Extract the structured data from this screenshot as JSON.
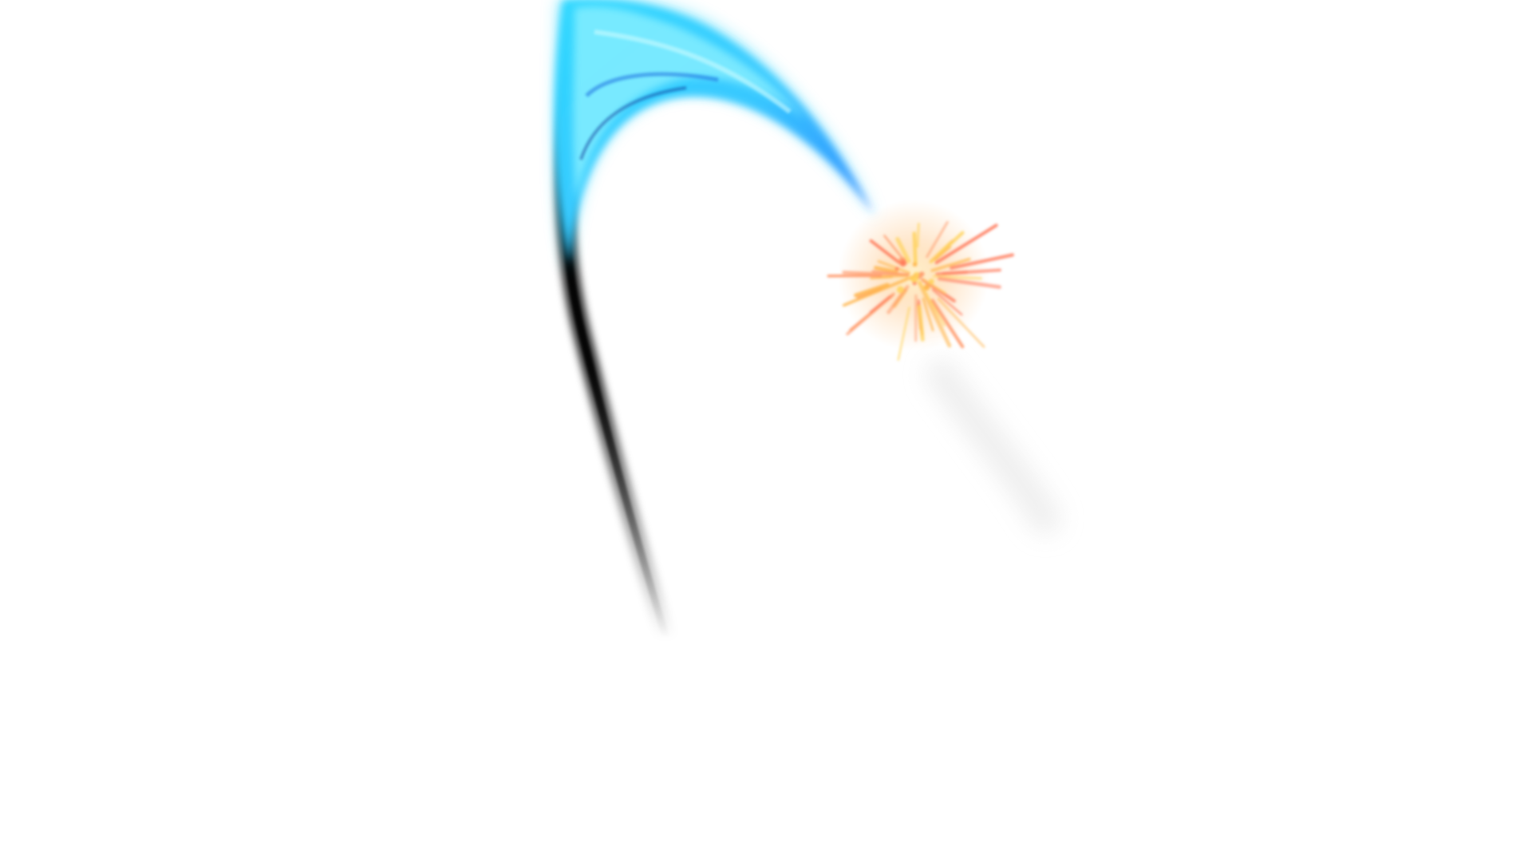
{
  "scene": {
    "background_color": "#ffffff",
    "effect": {
      "trail_colors": {
        "cyan": "#2fd8ff",
        "light_cyan": "#8ff2ff",
        "blue": "#2a7cff",
        "shadow": "#000000"
      },
      "spark_colors": [
        "#ffb347",
        "#ff9a6a",
        "#ffd35c",
        "#ff7a5a"
      ],
      "icon": "comet-spark-icon"
    }
  }
}
